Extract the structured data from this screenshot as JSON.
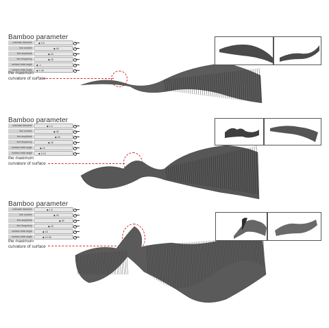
{
  "panels": [
    {
      "title": "Bamboo parameter",
      "sliders": [
        {
          "label": "cuts/rate diameter",
          "value": "0.5"
        },
        {
          "label": "line number",
          "value": "40"
        },
        {
          "label": "line amplitude",
          "value": "20"
        },
        {
          "label": "line frequency",
          "value": "25"
        },
        {
          "label": "surface twist angle",
          "value": "-1"
        },
        {
          "label": "surface twist angle",
          "value": "1.05"
        }
      ],
      "annotation_line1": "the maximum",
      "annotation_line2": "curvature of surface"
    },
    {
      "title": "Bamboo parameter",
      "sliders": [
        {
          "label": "cuts/rate diameter",
          "value": "1.0"
        },
        {
          "label": "line number",
          "value": "40"
        },
        {
          "label": "line amplitude",
          "value": "40"
        },
        {
          "label": "line frequency",
          "value": "25"
        },
        {
          "label": "surface twist angle",
          "value": "10"
        },
        {
          "label": "surface twist angle",
          "value": "5.15"
        }
      ],
      "annotation_line1": "the maximum",
      "annotation_line2": "curvature of surface"
    },
    {
      "title": "Bamboo parameter",
      "sliders": [
        {
          "label": "cuts/rate diameter",
          "value": "1.5"
        },
        {
          "label": "line number",
          "value": "40"
        },
        {
          "label": "line amplitude",
          "value": "60"
        },
        {
          "label": "line frequency",
          "value": "25"
        },
        {
          "label": "surface twist angle",
          "value": "16"
        },
        {
          "label": "surface twist angle",
          "value": "10.05"
        }
      ],
      "annotation_line1": "the maximum",
      "annotation_line2": "curvature of surface"
    }
  ],
  "colors": {
    "annotation": "#d42a2a",
    "surface": "#3a3a3a",
    "slider_label": "#d2d2d2"
  }
}
